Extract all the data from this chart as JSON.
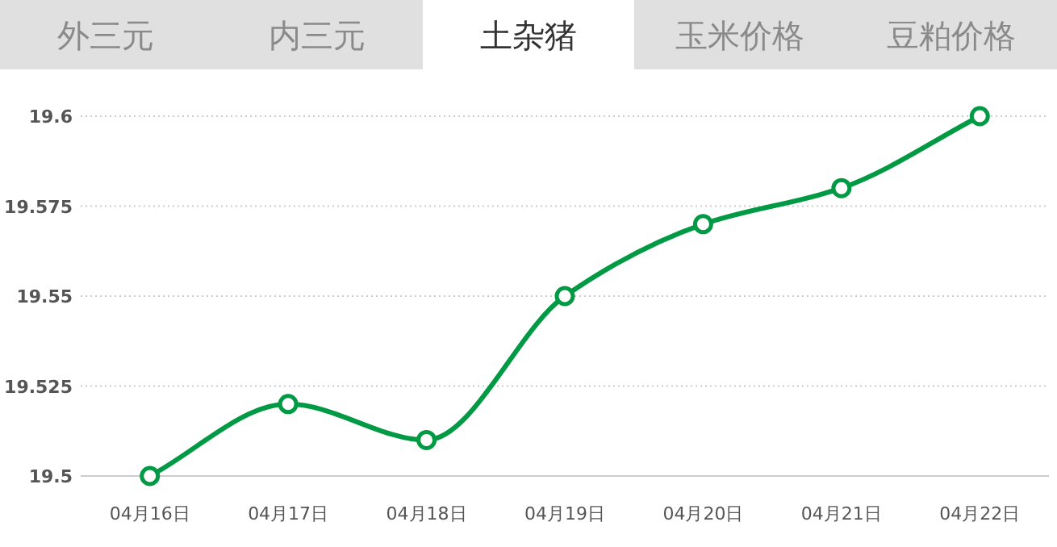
{
  "chart_data": {
    "type": "line",
    "title": "土杂猪",
    "annotations": [
      "外三元",
      "内三元",
      "玉米价格",
      "豆粕价格"
    ],
    "categories": [
      "04月16日",
      "04月17日",
      "04月18日",
      "04月19日",
      "04月20日",
      "04月21日",
      "04月22日"
    ],
    "series": [
      {
        "color": "#009944",
        "values": [
          19.5,
          19.52,
          19.51,
          19.55,
          19.57,
          19.58,
          19.6
        ]
      }
    ],
    "ylim": [
      19.5,
      19.6
    ],
    "yticks": [
      19.5,
      19.525,
      19.55,
      19.575,
      19.6
    ],
    "grid": "y",
    "marker": "circle",
    "line_style": "solid"
  }
}
